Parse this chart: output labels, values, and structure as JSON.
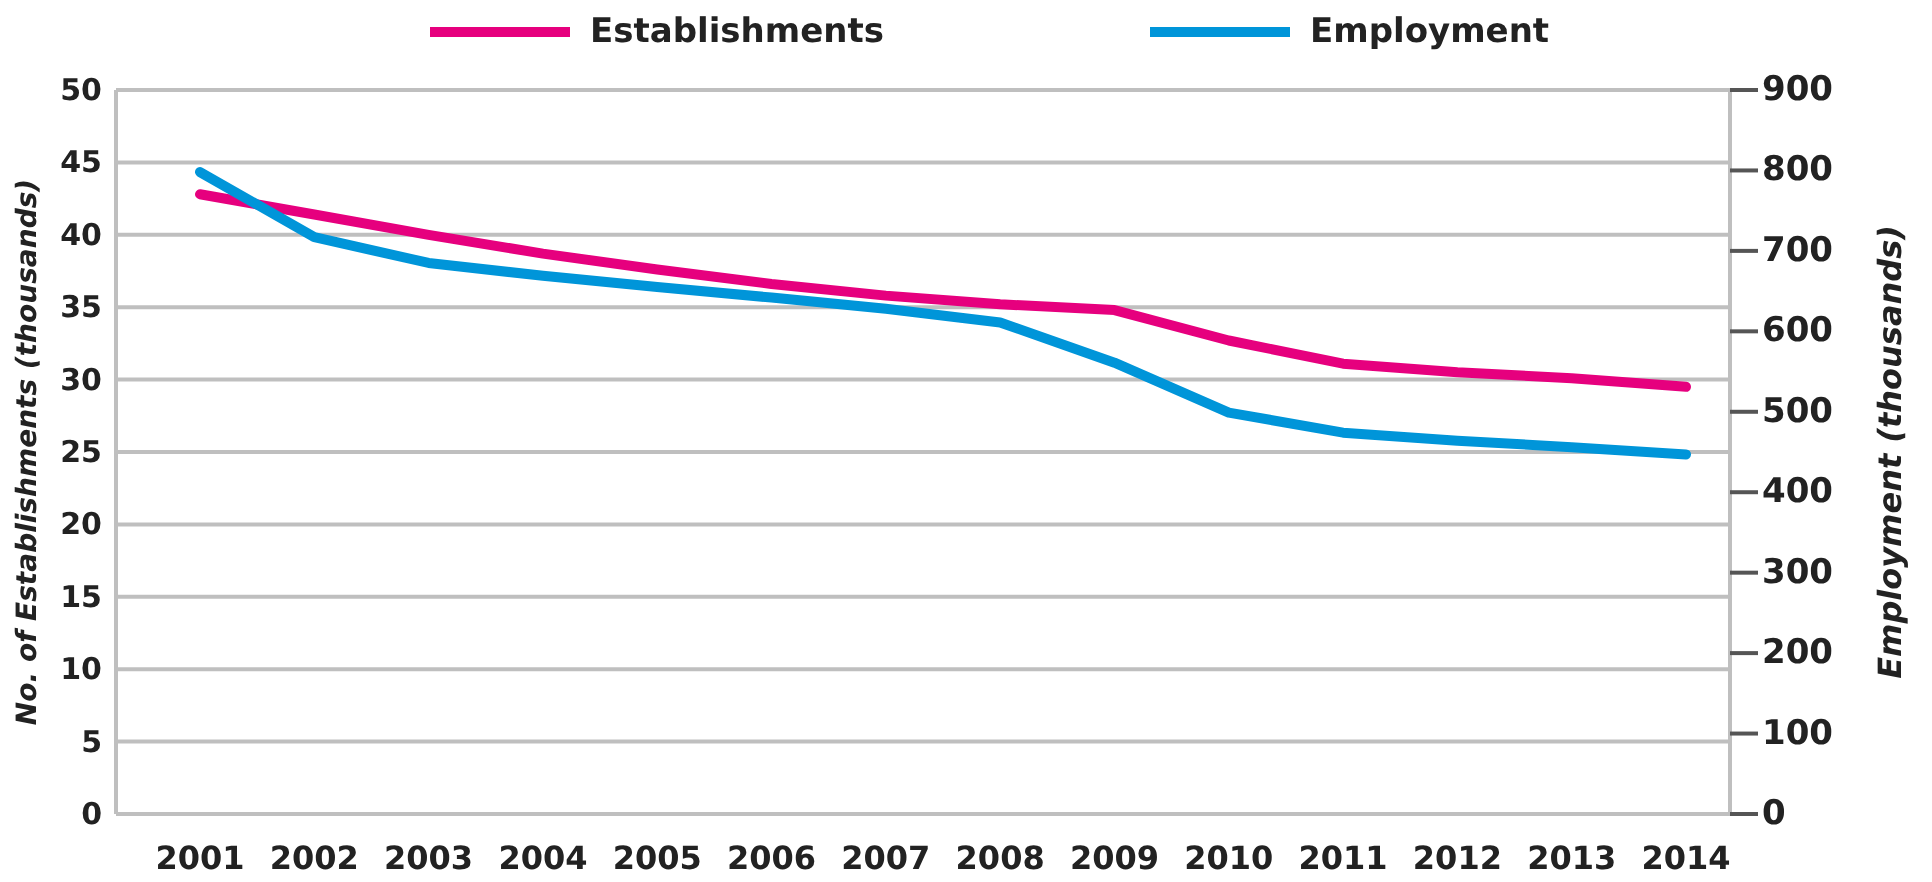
{
  "chart_data": {
    "type": "line",
    "categories": [
      "2001",
      "2002",
      "2003",
      "2004",
      "2005",
      "2006",
      "2007",
      "2008",
      "2009",
      "2010",
      "2011",
      "2012",
      "2013",
      "2014"
    ],
    "ylabel": "No. of Establishments (thousands)",
    "y2label": "Employment (thousands)",
    "ylim": [
      0,
      50
    ],
    "yticks": [
      0,
      5,
      10,
      15,
      20,
      25,
      30,
      35,
      40,
      45,
      50
    ],
    "y2lim": [
      0,
      900
    ],
    "y2ticks": [
      0,
      100,
      200,
      300,
      400,
      500,
      600,
      700,
      800,
      900
    ],
    "grid": "y",
    "legend": "top",
    "line_style": "solid",
    "marker": "none",
    "series": [
      {
        "name": "Establishments",
        "color": "#e6007e",
        "values": [
          42.8,
          41.4,
          40.0,
          38.7,
          37.6,
          36.6,
          35.8,
          35.2,
          34.8,
          32.7,
          31.1,
          30.5,
          30.1,
          29.5
        ]
      },
      {
        "name": "Employment",
        "color": "#0095d9",
        "axis": "y2",
        "values": [
          798,
          717,
          685,
          669,
          655,
          642,
          628,
          611,
          561,
          499,
          474,
          464,
          456,
          447
        ]
      }
    ]
  }
}
